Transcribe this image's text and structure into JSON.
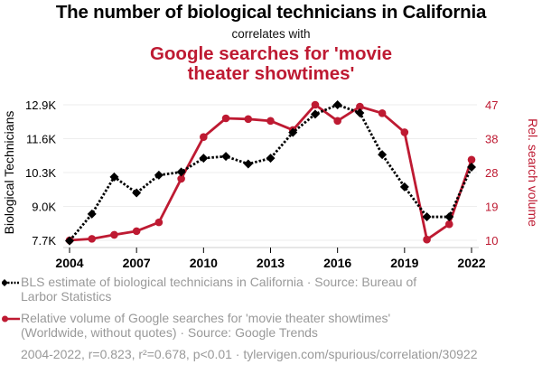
{
  "header": {
    "title": "The number of biological technicians in California",
    "subtitle": "correlates with",
    "title2": "Google searches for 'movie theater showtimes'"
  },
  "colors": {
    "series1": "#000000",
    "series2": "#BE1A32",
    "grid": "#eeeeee",
    "legend_text": "#999999"
  },
  "legend": {
    "item1": "BLS estimate of biological technicians in California · Source: Bureau of Larbor Statistics",
    "item2": "Relative volume of Google searches for 'movie theater showtimes' (Worldwide, without quotes) · Source: Google Trends"
  },
  "footer": "2004-2022, r=0.823, r²=0.678, p<0.01 · tylervigen.com/spurious/correlation/30922",
  "chart_data": {
    "type": "line",
    "title": "The number of biological technicians in California",
    "subtitle": "correlates with Google searches for 'movie theater showtimes'",
    "x": [
      2004,
      2005,
      2006,
      2007,
      2008,
      2009,
      2010,
      2011,
      2012,
      2013,
      2014,
      2015,
      2016,
      2017,
      2018,
      2019,
      2020,
      2021,
      2022
    ],
    "xlim": [
      2004,
      2022
    ],
    "x_ticks": [
      "2004",
      "2007",
      "2010",
      "2013",
      "2016",
      "2019",
      "2022"
    ],
    "x_tick_values": [
      2004,
      2007,
      2010,
      2013,
      2016,
      2019,
      2022
    ],
    "ylabel_left": "Biological Technicians",
    "ylabel_right": "Rel. search volume",
    "ylim_left": [
      7700,
      12900
    ],
    "ylim_right": [
      10,
      47
    ],
    "y_ticks_left": [
      "7.7K",
      "9.0K",
      "10.3K",
      "11.6K",
      "12.9K"
    ],
    "y_tick_values_left": [
      7700,
      9000,
      10300,
      11600,
      12900
    ],
    "y_ticks_right": [
      "10",
      "19",
      "28",
      "38",
      "47"
    ],
    "y_tick_values_right": [
      10,
      19.25,
      28.5,
      37.75,
      47
    ],
    "grid": true,
    "legend_position": "bottom-left",
    "series": [
      {
        "name": "BLS estimate of biological technicians in California",
        "axis": "left",
        "style": "dotted-diamond",
        "color": "#000000",
        "values": [
          7680,
          8710,
          10130,
          9520,
          10200,
          10320,
          10850,
          10920,
          10630,
          10850,
          11840,
          12540,
          12900,
          12590,
          10990,
          9750,
          8600,
          8600,
          10510
        ]
      },
      {
        "name": "Relative volume of Google searches for 'movie theater showtimes' (Worldwide, without quotes)",
        "axis": "right",
        "style": "solid-circle",
        "color": "#BE1A32",
        "values": [
          10,
          10.4,
          11.5,
          12.5,
          14.9,
          26.8,
          38.2,
          43.3,
          43.1,
          42.6,
          40.1,
          47,
          42.6,
          46.5,
          44.7,
          39.5,
          10.2,
          14.4,
          32
        ]
      }
    ]
  }
}
